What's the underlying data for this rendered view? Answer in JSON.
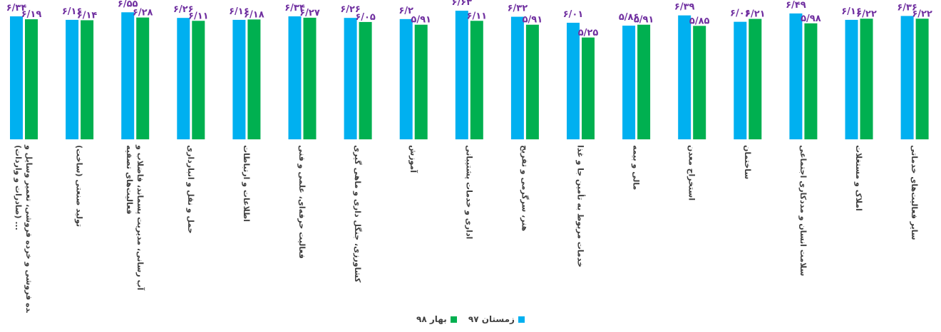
{
  "chart_data": {
    "type": "bar",
    "categories": [
      [
        "عمده فروشی و خرده فروشی، تعمیر وسایل و",
        "... (صادرات و واردات)"
      ],
      [
        "تولید صنعتی (ساخت)"
      ],
      [
        "آب رسانی، مدیریت پسماند، فاضلاب و",
        "فعالیت‌های تصفیه"
      ],
      [
        "حمل و نقل و انبارداری"
      ],
      [
        "اطلاعات و ارتباطات"
      ],
      [
        "فعالیت حرفه‌ای، علمی و فنی"
      ],
      [
        "کشاورزی، جنگل داری و ماهی گیری"
      ],
      [
        "آموزش"
      ],
      [
        "اداری و خدمات پشتیبانی"
      ],
      [
        "هنر، سرگرمی و تفریح"
      ],
      [
        "خدمات مربوط به تأمین جا و غذا"
      ],
      [
        "مالی و بیمه"
      ],
      [
        "استخراج معدن"
      ],
      [
        "ساختمان"
      ],
      [
        "سلامت انسان و مددکاری اجتماعی"
      ],
      [
        "املاک و مستغلات"
      ],
      [
        "سایر فعالیت‌های خدماتی"
      ]
    ],
    "series": [
      {
        "name": "زمستان ۹۷",
        "values": [
          6.34,
          6.16,
          6.55,
          6.26,
          6.16,
          6.34,
          6.26,
          6.2,
          6.63,
          6.32,
          6.01,
          5.86,
          6.39,
          6.06,
          6.49,
          6.16,
          6.36
        ],
        "labels": [
          "۶/۳۴",
          "۶/۱۶",
          "۶/۵۵",
          "۶/۲۶",
          "۶/۱۶",
          "۶/۳۴",
          "۶/۲۶",
          "۶/۲",
          "۶/۶۳",
          "۶/۳۲",
          "۶/۰۱",
          "۵/۸۶",
          "۶/۳۹",
          "۶/۰۶",
          "۶/۴۹",
          "۶/۱۶",
          "۶/۳۶"
        ]
      },
      {
        "name": "بهار ۹۸",
        "values": [
          6.19,
          6.14,
          6.28,
          6.11,
          6.18,
          6.27,
          6.05,
          5.91,
          6.11,
          5.91,
          5.25,
          5.91,
          5.85,
          6.21,
          5.98,
          6.22,
          6.22
        ],
        "labels": [
          "۶/۱۹",
          "۶/۱۴",
          "۶/۲۸",
          "۶/۱۱",
          "۶/۱۸",
          "۶/۲۷",
          "۶/۰۵",
          "۵/۹۱",
          "۶/۱۱",
          "۵/۹۱",
          "۵/۲۵",
          "۵/۹۱",
          "۵/۸۵",
          "۶/۲۱",
          "۵/۹۸",
          "۶/۲۲",
          "۶/۲۲"
        ]
      }
    ],
    "colors": [
      "#00b0f0",
      "#00b050"
    ],
    "label_color": "#7030a0",
    "ylim": [
      0,
      7
    ],
    "grid": false,
    "legend_position": "bottom"
  }
}
